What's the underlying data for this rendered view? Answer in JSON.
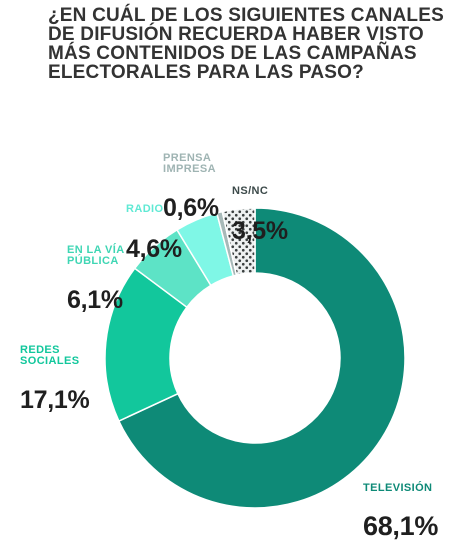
{
  "title": "¿EN CUÁL DE LOS SIGUIENTES CANALES\nDE DIFUSIÓN RECUERDA HABER VISTO\nMÁS CONTENIDOS DE LAS CAMPAÑAS\nELECTORALES PARA LAS PASO?",
  "chart_data": {
    "type": "pie",
    "subtype": "donut",
    "title": "¿EN CUÁL DE LOS SIGUIENTES CANALES\nDE DIFUSIÓN RECUERDA HABER VISTO\nMÁS CONTENIDOS DE LAS CAMPAÑAS\nELECTORALES PARA LAS PASO?",
    "legend": "none",
    "slices": [
      {
        "label": "TELEVISIÓN",
        "value": 68.1,
        "value_label": "68,1%",
        "color": "#0e8a77",
        "label_color": "#0e8a77"
      },
      {
        "label": "REDES\nSOCIALES",
        "value": 17.1,
        "value_label": "17,1%",
        "color": "#12c79c",
        "label_color": "#12c79c"
      },
      {
        "label": "EN LA VÍA\nPÚBLICA",
        "value": 6.1,
        "value_label": "6,1%",
        "color": "#5de3c6",
        "label_color": "#3fd6b4"
      },
      {
        "label": "RADIO",
        "value": 4.6,
        "value_label": "4,6%",
        "color": "#7ff7e6",
        "label_color": "#5fe9d4"
      },
      {
        "label": "PRENSA\nIMPRESA",
        "value": 0.6,
        "value_label": "0,6%",
        "color": "#a7b9b8",
        "label_color": "#9fb4b3"
      },
      {
        "label": "NS/NC",
        "value": 3.5,
        "value_label": "3,5%",
        "color": "#e8ecec",
        "pattern": "dots",
        "label_color": "#3c4a4a"
      }
    ]
  }
}
